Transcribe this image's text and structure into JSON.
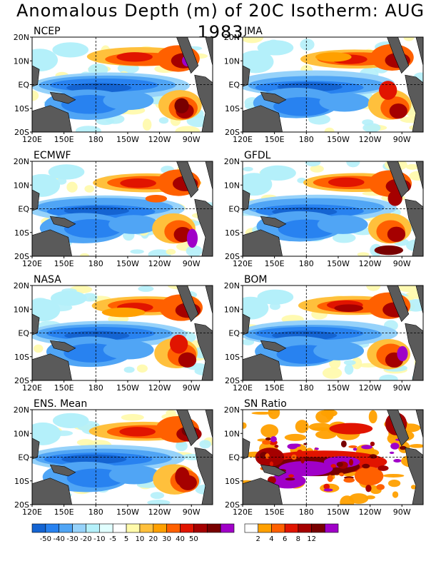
{
  "title": "Anomalous Depth (m) of 20C Isotherm: AUG 1983",
  "panels": [
    "NCEP",
    "JMA",
    "ECMWF",
    "GFDL",
    "NASA",
    "BOM",
    "ENS. Mean",
    "SN Ratio"
  ],
  "lat_ticks": [
    "20N",
    "10N",
    "EQ",
    "10S",
    "20S"
  ],
  "lon_ticks": [
    "120E",
    "150E",
    "180",
    "150W",
    "120W",
    "90W"
  ],
  "colors": {
    "land": "#5a5a5a",
    "neg": [
      "#1464d2",
      "#2882f0",
      "#50a5f5",
      "#96d2fa",
      "#b4f0fa",
      "#e1ffff"
    ],
    "pos": [
      "#fffaaa",
      "#ffc03c",
      "#ffa000",
      "#ff6000",
      "#e11400",
      "#a50000",
      "#780000",
      "#a000c8"
    ],
    "sn": [
      "#ffffff",
      "#ffa000",
      "#ff6000",
      "#e11400",
      "#a50000",
      "#780000",
      "#a000c8"
    ]
  },
  "colorbar_anomaly": {
    "labels": [
      "-50",
      "-40",
      "-30",
      "-20",
      "-10",
      "-5",
      "5",
      "10",
      "20",
      "30",
      "40",
      "50"
    ],
    "colors": [
      "#1464d2",
      "#2882f0",
      "#50a5f5",
      "#96d2fa",
      "#b4f0fa",
      "#e1ffff",
      "#ffffff",
      "#fffaaa",
      "#ffc03c",
      "#ffa000",
      "#ff6000",
      "#e11400",
      "#a50000",
      "#780000",
      "#a000c8"
    ]
  },
  "colorbar_sn": {
    "labels": [
      "2",
      "4",
      "6",
      "8",
      "12"
    ],
    "colors": [
      "#ffffff",
      "#ffa000",
      "#ff6000",
      "#e11400",
      "#a50000",
      "#780000",
      "#a000c8"
    ]
  }
}
